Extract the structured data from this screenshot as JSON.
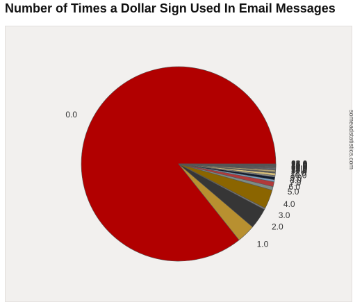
{
  "title": "Number of Times a Dollar Sign Used In Email Messages",
  "watermark": "someadstatistics.com",
  "chart_data": {
    "type": "pie",
    "title": "Number of Times a Dollar Sign Used In Email Messages",
    "start_angle_deg": 0,
    "direction": "counterclockwise",
    "legend": "none",
    "slices": [
      {
        "label": "0.0",
        "value": 86.4,
        "color": "#b10000"
      },
      {
        "label": "1.0",
        "value": 3.1,
        "color": "#b89030"
      },
      {
        "label": "2.0",
        "value": 3.5,
        "color": "#363636"
      },
      {
        "label": "3.0",
        "value": 0.25,
        "color": "#7b7b7b"
      },
      {
        "label": "4.0",
        "value": 3.2,
        "color": "#8b6500"
      },
      {
        "label": "5.0",
        "value": 0.6,
        "color": "#7c8c88"
      },
      {
        "label": "6.0",
        "value": 0.8,
        "color": "#b13a3a"
      },
      {
        "label": "7.0",
        "value": 0.35,
        "color": "#7a9fc0"
      },
      {
        "label": "8.0",
        "value": 0.45,
        "color": "#0f1a2e"
      },
      {
        "label": "9.0",
        "value": 0.25,
        "color": "#8c8c8c"
      },
      {
        "label": "10.0",
        "value": 0.4,
        "color": "#d8c07a"
      },
      {
        "label": "11.0",
        "value": 0.2,
        "color": "#5a5a5a"
      },
      {
        "label": "12.0",
        "value": 0.3,
        "color": "#b0a070"
      },
      {
        "label": "13.0",
        "value": 0.1,
        "color": "#b19090"
      },
      {
        "label": "14.0",
        "value": 0.1,
        "color": "#909090"
      },
      {
        "label": "15.0",
        "value": 0.12,
        "color": "#7a8aa0"
      },
      {
        "label": "16.0",
        "value": 0.08,
        "color": "#8a6a3a"
      },
      {
        "label": "17.0",
        "value": 0.1,
        "color": "#a09090"
      },
      {
        "label": "18.0",
        "value": 0.06,
        "color": "#6a7a6a"
      },
      {
        "label": "19.0",
        "value": 0.08,
        "color": "#c0a0a0"
      },
      {
        "label": "20.0",
        "value": 0.05,
        "color": "#8a8a8a"
      },
      {
        "label": "21.0",
        "value": 0.05,
        "color": "#a08a70"
      },
      {
        "label": "22.0",
        "value": 0.05,
        "color": "#707a8a"
      },
      {
        "label": "23.0",
        "value": 0.04,
        "color": "#9a9a9a"
      },
      {
        "label": "24.0",
        "value": 0.04,
        "color": "#b0a090"
      },
      {
        "label": "25.0",
        "value": 0.04,
        "color": "#7a7a7a"
      },
      {
        "label": "26.0",
        "value": 0.04,
        "color": "#a0a0b0"
      },
      {
        "label": "27.0",
        "value": 0.04,
        "color": "#8a9a8a"
      },
      {
        "label": "28.0",
        "value": 0.04,
        "color": "#a09a8a"
      }
    ]
  }
}
